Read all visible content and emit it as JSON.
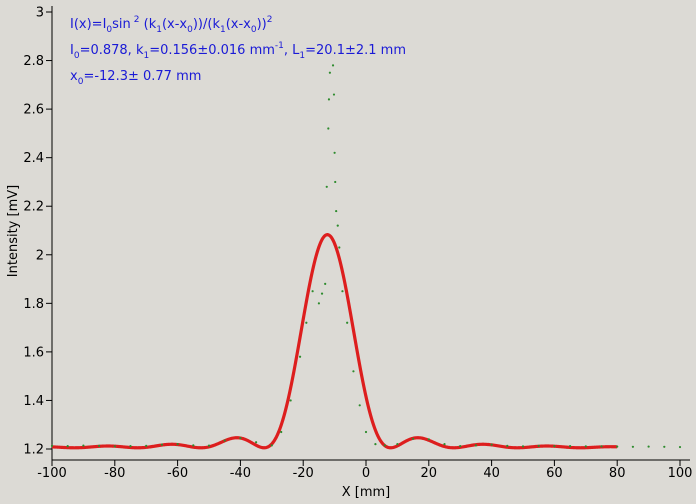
{
  "chart_data": {
    "type": "scatter",
    "title": "",
    "xlabel": "X [mm]",
    "ylabel": "Intensity [mV]",
    "xlim": [
      -100,
      100
    ],
    "ylim": [
      1.18,
      3.0
    ],
    "xticks": [
      -100,
      -80,
      -60,
      -40,
      -20,
      0,
      20,
      40,
      60,
      80,
      100
    ],
    "yticks": [
      1.2,
      1.4,
      1.6,
      1.8,
      2,
      2.2,
      2.4,
      2.6,
      2.8,
      3
    ],
    "grid": false,
    "series": [
      {
        "kind": "measured points",
        "color": "#2e8b2e",
        "points": [
          [
            -100,
            1.213
          ],
          [
            -95,
            1.212
          ],
          [
            -90,
            1.214
          ],
          [
            -85,
            1.213
          ],
          [
            -80,
            1.211
          ],
          [
            -75,
            1.212
          ],
          [
            -70,
            1.213
          ],
          [
            -65,
            1.218
          ],
          [
            -60,
            1.22
          ],
          [
            -55,
            1.215
          ],
          [
            -50,
            1.214
          ],
          [
            -45,
            1.235
          ],
          [
            -40,
            1.245
          ],
          [
            -35,
            1.228
          ],
          [
            -30,
            1.215
          ],
          [
            -27,
            1.27
          ],
          [
            -24,
            1.4
          ],
          [
            -21,
            1.58
          ],
          [
            -19,
            1.72
          ],
          [
            -17,
            1.85
          ],
          [
            -15,
            1.8
          ],
          [
            -14,
            1.84
          ],
          [
            -13,
            1.88
          ],
          [
            -12.5,
            2.28
          ],
          [
            -12,
            2.52
          ],
          [
            -11.8,
            2.64
          ],
          [
            -11.5,
            2.75
          ],
          [
            -10.5,
            2.78
          ],
          [
            -10.2,
            2.66
          ],
          [
            -10,
            2.42
          ],
          [
            -9.8,
            2.3
          ],
          [
            -9.5,
            2.18
          ],
          [
            -9,
            2.12
          ],
          [
            -8.5,
            2.03
          ],
          [
            -7.5,
            1.85
          ],
          [
            -6,
            1.72
          ],
          [
            -4,
            1.52
          ],
          [
            -2,
            1.38
          ],
          [
            0,
            1.27
          ],
          [
            3,
            1.22
          ],
          [
            6,
            1.215
          ],
          [
            10,
            1.22
          ],
          [
            15,
            1.242
          ],
          [
            20,
            1.24
          ],
          [
            25,
            1.22
          ],
          [
            30,
            1.212
          ],
          [
            35,
            1.215
          ],
          [
            40,
            1.218
          ],
          [
            45,
            1.213
          ],
          [
            50,
            1.211
          ],
          [
            55,
            1.213
          ],
          [
            60,
            1.212
          ],
          [
            65,
            1.212
          ],
          [
            70,
            1.211
          ],
          [
            75,
            1.211
          ],
          [
            80,
            1.21
          ],
          [
            85,
            1.209
          ],
          [
            90,
            1.21
          ],
          [
            95,
            1.209
          ],
          [
            100,
            1.208
          ]
        ]
      },
      {
        "kind": "fit curve",
        "color": "#dd1e1e",
        "model": "I(x)=I0*sin^2(k1(x-x0))/(k1(x-x0))^2 + offset",
        "I0": 0.878,
        "k1": 0.156,
        "x0": -12.3,
        "offset": 1.205,
        "x_range": [
          -100,
          80
        ]
      }
    ],
    "annotations": {
      "line1": {
        "a": "I(x)=I",
        "a_sub": "0",
        "b": "sin",
        "b_sup": "2",
        "c": " (k",
        "c_sub": "1",
        "d": "(x-x",
        "d_sub": "0",
        "e": "))/(k",
        "e_sub": "1",
        "f": "(x-x",
        "f_sub": "0",
        "g": "))",
        "g_sup": "2"
      },
      "line2": {
        "a": "I",
        "a_sub": "0",
        "b": "=0.878,  k",
        "b_sub": "1",
        "c": "=0.156±0.016 mm",
        "c_sup": "-1",
        "d": ",   L",
        "d_sub": "1",
        "e": "=20.1±2.1 mm"
      },
      "line3": {
        "a": "x",
        "a_sub": "0",
        "b": "=-12.3±   0.77 mm"
      }
    }
  }
}
